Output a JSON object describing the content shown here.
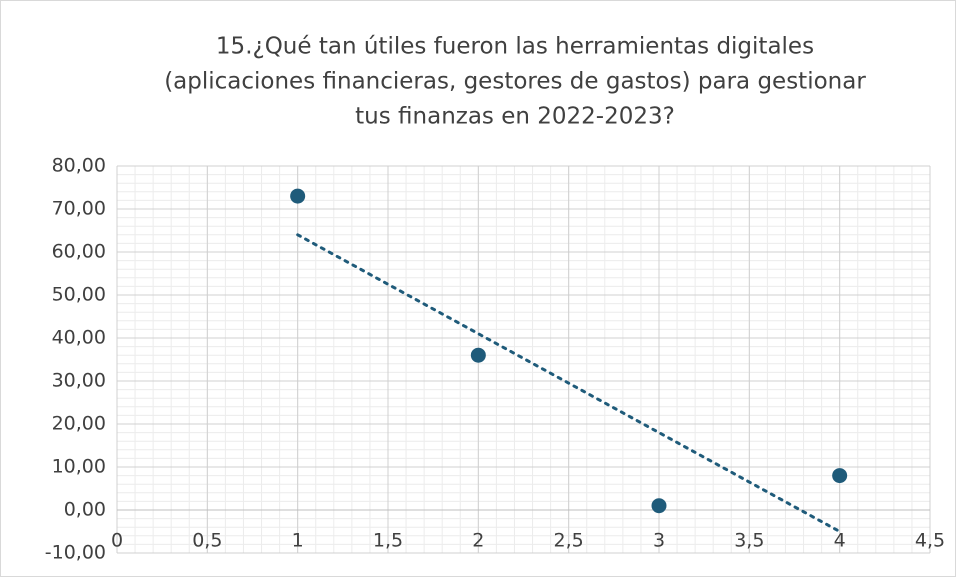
{
  "chart_data": {
    "type": "scatter",
    "title": [
      "15.¿Qué tan útiles fueron las herramientas digitales",
      "(aplicaciones financieras, gestores de gastos) para gestionar",
      "tus finanzas en 2022-2023?"
    ],
    "x": [
      1,
      2,
      3,
      4
    ],
    "values": [
      73,
      36,
      1,
      8
    ],
    "color": "#1f5b7a",
    "trendline": "linear",
    "grid": true,
    "xlim": [
      0,
      4.5
    ],
    "xticks": [
      0,
      {
        "value": 0.5,
        "label": "0,5"
      },
      1,
      {
        "value": 1.5,
        "label": "1,5"
      },
      2,
      {
        "value": 2.5,
        "label": "2,5"
      },
      3,
      {
        "value": 3.5,
        "label": "3,5"
      },
      4,
      {
        "value": 4.5,
        "label": "4,5"
      }
    ],
    "ylim": [
      -10,
      80
    ],
    "yticks": [
      {
        "value": -10,
        "label": "-10,00"
      },
      {
        "value": 0,
        "label": "0,00"
      },
      {
        "value": 10,
        "label": "10,00"
      },
      {
        "value": 20,
        "label": "20,00"
      },
      {
        "value": 30,
        "label": "30,00"
      },
      {
        "value": 40,
        "label": "40,00"
      },
      {
        "value": 50,
        "label": "50,00"
      },
      {
        "value": 60,
        "label": "60,00"
      },
      {
        "value": 70,
        "label": "70,00"
      },
      {
        "value": 80,
        "label": "80,00"
      }
    ]
  }
}
